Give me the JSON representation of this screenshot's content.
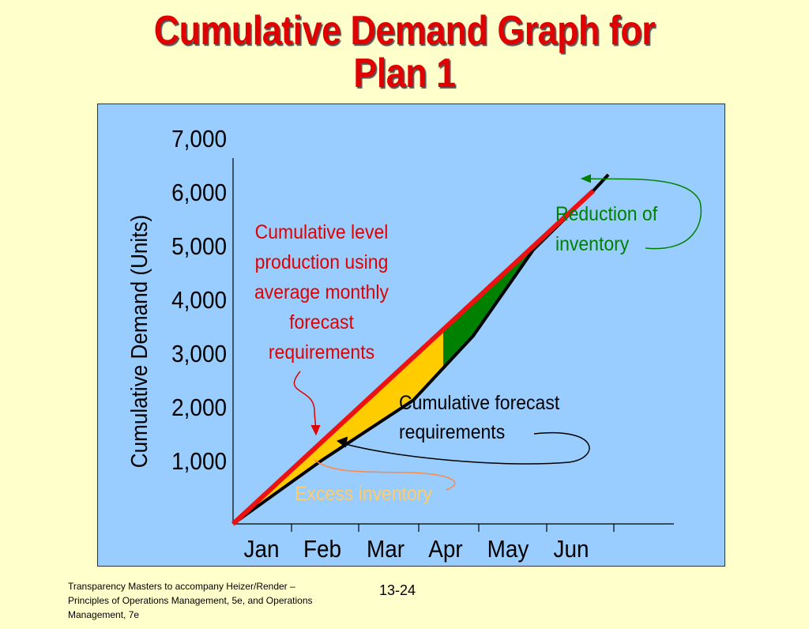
{
  "slide": {
    "title_line1": "Cumulative Demand Graph for",
    "title_line2": "Plan 1",
    "footer_text": "Transparency Masters to accompany Heizer/Render – Principles of Operations Management, 5e, and Operations Management, 7e",
    "page_number": "13-24"
  },
  "chart_data": {
    "type": "line",
    "title": "Cumulative Demand Graph for Plan 1",
    "ylabel": "Cumulative Demand (Units)",
    "xlabel": "",
    "categories": [
      "Jan",
      "Feb",
      "Mar",
      "Apr",
      "May",
      "Jun"
    ],
    "y_tick_labels": [
      "1,000",
      "2,000",
      "3,000",
      "4,000",
      "5,000",
      "6,000",
      "7,000"
    ],
    "ylim": [
      0,
      7000
    ],
    "grid": false,
    "series": [
      {
        "name": "Cumulative forecast requirements",
        "color": "#000000",
        "x": [
          0,
          1.5,
          3.0,
          4.0,
          5.0,
          6.0,
          6.25
        ],
        "values": [
          0,
          1200,
          2300,
          3500,
          5100,
          6200,
          6500
        ]
      },
      {
        "name": "Cumulative level production using average monthly forecast requirements",
        "color": "#EE1111",
        "x": [
          0,
          6.0
        ],
        "values": [
          0,
          6200
        ]
      }
    ],
    "shaded_regions": [
      {
        "label": "Excess inventory",
        "color": "#FFCC00"
      },
      {
        "label": "Reduction of inventory",
        "color": "#008000"
      }
    ],
    "annotations": {
      "level": "Cumulative level production using average monthly forecast requirements",
      "level_lines": [
        "Cumulative level",
        "production using",
        "average monthly",
        "forecast",
        "requirements"
      ],
      "forecast_lines": [
        "Cumulative forecast",
        "requirements"
      ],
      "reduction_lines": [
        "Reduction of",
        "inventory"
      ],
      "excess": "Excess inventory"
    },
    "colors": {
      "level_annotation": "#E00000",
      "forecast_annotation": "#000000",
      "reduction_annotation": "#008000",
      "excess_annotation": "#FFCC66"
    }
  }
}
